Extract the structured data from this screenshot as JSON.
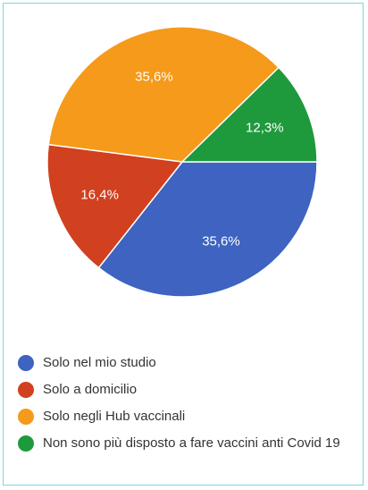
{
  "chart_data": {
    "type": "pie",
    "categories": [
      "Solo nel mio studio",
      "Solo a domicilio",
      "Solo negli Hub vaccinali",
      "Non sono più disposto a fare vaccini anti Covid 19"
    ],
    "values": [
      35.6,
      16.4,
      35.6,
      12.3
    ],
    "value_labels": [
      "35,6%",
      "16,4%",
      "35,6%",
      "12,3%"
    ],
    "colors": [
      "#3e63c0",
      "#d1401f",
      "#f59a1b",
      "#1e9a3c"
    ]
  }
}
